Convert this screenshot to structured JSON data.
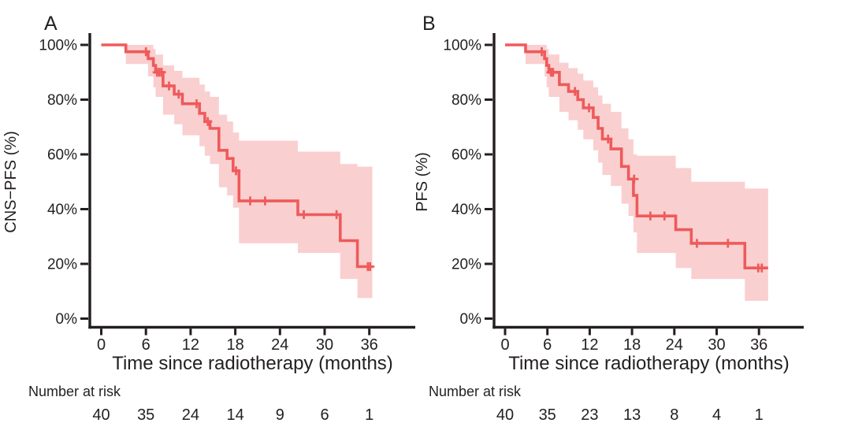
{
  "figure": {
    "background": "#ffffff",
    "text_color": "#231f20",
    "axis_color": "#231f20",
    "curve_color": "#ef5a5b",
    "band_color": "#ef5a5b",
    "band_opacity": 0.29
  },
  "chart_data": [
    {
      "type": "line",
      "subtype": "kaplan_meier_step_with_confidence_band",
      "panel_label": "A",
      "ylabel": "CNS−PFS (%)",
      "xlabel": "Time since radiotherapy (months)",
      "x_ticks": [
        0,
        6,
        12,
        18,
        24,
        30,
        36
      ],
      "y_ticks": [
        0,
        20,
        40,
        60,
        80,
        100
      ],
      "y_tick_suffix": "%",
      "xlim": [
        0,
        42
      ],
      "ylim": [
        0,
        100
      ],
      "grid": false,
      "legend": false,
      "end_time": 36.4,
      "steps_format": [
        "time_months",
        "survival_pct",
        "ci_lower_pct",
        "ci_upper_pct"
      ],
      "steps": [
        [
          0,
          100,
          100,
          100
        ],
        [
          3.3,
          97.5,
          93,
          100
        ],
        [
          6.3,
          95,
          88.5,
          100
        ],
        [
          7.0,
          92.5,
          84.5,
          98.5
        ],
        [
          7.3,
          90,
          81,
          96.5
        ],
        [
          8.3,
          85,
          74.5,
          92.5
        ],
        [
          9.8,
          82,
          71,
          90.5
        ],
        [
          10.9,
          78.5,
          67,
          88
        ],
        [
          13.2,
          75,
          63,
          85.5
        ],
        [
          13.9,
          72,
          59.5,
          83
        ],
        [
          14.6,
          69.5,
          56.5,
          81
        ],
        [
          15.8,
          61.5,
          48,
          74.5
        ],
        [
          16.9,
          58.5,
          45,
          72
        ],
        [
          17.7,
          54,
          40.5,
          68
        ],
        [
          18.5,
          43,
          27.5,
          65
        ],
        [
          26.4,
          38,
          24,
          61
        ],
        [
          32.1,
          28.5,
          14.5,
          56.5
        ],
        [
          34.4,
          19,
          7.5,
          55.5
        ]
      ],
      "censor_marks": [
        [
          6.0,
          97.5
        ],
        [
          7.5,
          90
        ],
        [
          7.8,
          90
        ],
        [
          8.1,
          90
        ],
        [
          9.1,
          85
        ],
        [
          10.4,
          82
        ],
        [
          12.8,
          78.5
        ],
        [
          14.3,
          72
        ],
        [
          18.1,
          54
        ],
        [
          20.0,
          43
        ],
        [
          22.0,
          43
        ],
        [
          27.2,
          38
        ],
        [
          31.6,
          38
        ],
        [
          35.8,
          19
        ],
        [
          36.1,
          19
        ]
      ],
      "risk_table": {
        "label": "Number at risk",
        "times": [
          0,
          6,
          12,
          18,
          24,
          30,
          36
        ],
        "counts": [
          40,
          35,
          24,
          14,
          9,
          6,
          1
        ]
      }
    },
    {
      "type": "line",
      "subtype": "kaplan_meier_step_with_confidence_band",
      "panel_label": "B",
      "ylabel": "PFS (%)",
      "xlabel": "Time since radiotherapy (months)",
      "x_ticks": [
        0,
        6,
        12,
        18,
        24,
        30,
        36
      ],
      "y_ticks": [
        0,
        20,
        40,
        60,
        80,
        100
      ],
      "y_tick_suffix": "%",
      "xlim": [
        0,
        42
      ],
      "ylim": [
        0,
        100
      ],
      "grid": false,
      "legend": false,
      "end_time": 37.3,
      "steps_format": [
        "time_months",
        "survival_pct",
        "ci_lower_pct",
        "ci_upper_pct"
      ],
      "steps": [
        [
          0,
          100,
          100,
          100
        ],
        [
          2.9,
          97.5,
          93,
          100
        ],
        [
          5.6,
          95,
          88.5,
          100
        ],
        [
          5.9,
          92.5,
          84.5,
          98.5
        ],
        [
          6.2,
          90,
          81,
          96.5
        ],
        [
          7.7,
          85.5,
          75.5,
          93.5
        ],
        [
          9.0,
          83,
          72.5,
          91.5
        ],
        [
          10.3,
          80,
          69,
          89.5
        ],
        [
          11.1,
          77,
          65.5,
          87
        ],
        [
          12.5,
          73.5,
          61.5,
          84.5
        ],
        [
          13.2,
          69.5,
          57,
          81.5
        ],
        [
          13.8,
          65.6,
          52.5,
          78.5
        ],
        [
          15.0,
          62,
          48.5,
          75.5
        ],
        [
          16.5,
          55.6,
          42,
          69.5
        ],
        [
          17.5,
          51,
          37.5,
          65.5
        ],
        [
          18.2,
          45,
          31.5,
          60
        ],
        [
          18.7,
          37.5,
          24,
          59.5
        ],
        [
          24.2,
          32.5,
          18.5,
          55
        ],
        [
          26.4,
          27.5,
          14.5,
          50
        ],
        [
          34.0,
          18.5,
          6.5,
          47.5
        ]
      ],
      "censor_marks": [
        [
          5.2,
          97.5
        ],
        [
          6.5,
          90
        ],
        [
          6.8,
          90
        ],
        [
          9.9,
          83
        ],
        [
          11.9,
          77
        ],
        [
          14.6,
          65.6
        ],
        [
          18.3,
          51
        ],
        [
          20.6,
          37.5
        ],
        [
          22.6,
          37.5
        ],
        [
          27.2,
          27.5
        ],
        [
          31.6,
          27.5
        ],
        [
          35.9,
          18.5
        ],
        [
          36.4,
          18.5
        ]
      ],
      "risk_table": {
        "label": "Number at risk",
        "times": [
          0,
          6,
          12,
          18,
          24,
          30,
          36
        ],
        "counts": [
          40,
          35,
          23,
          13,
          8,
          4,
          1
        ]
      }
    }
  ]
}
